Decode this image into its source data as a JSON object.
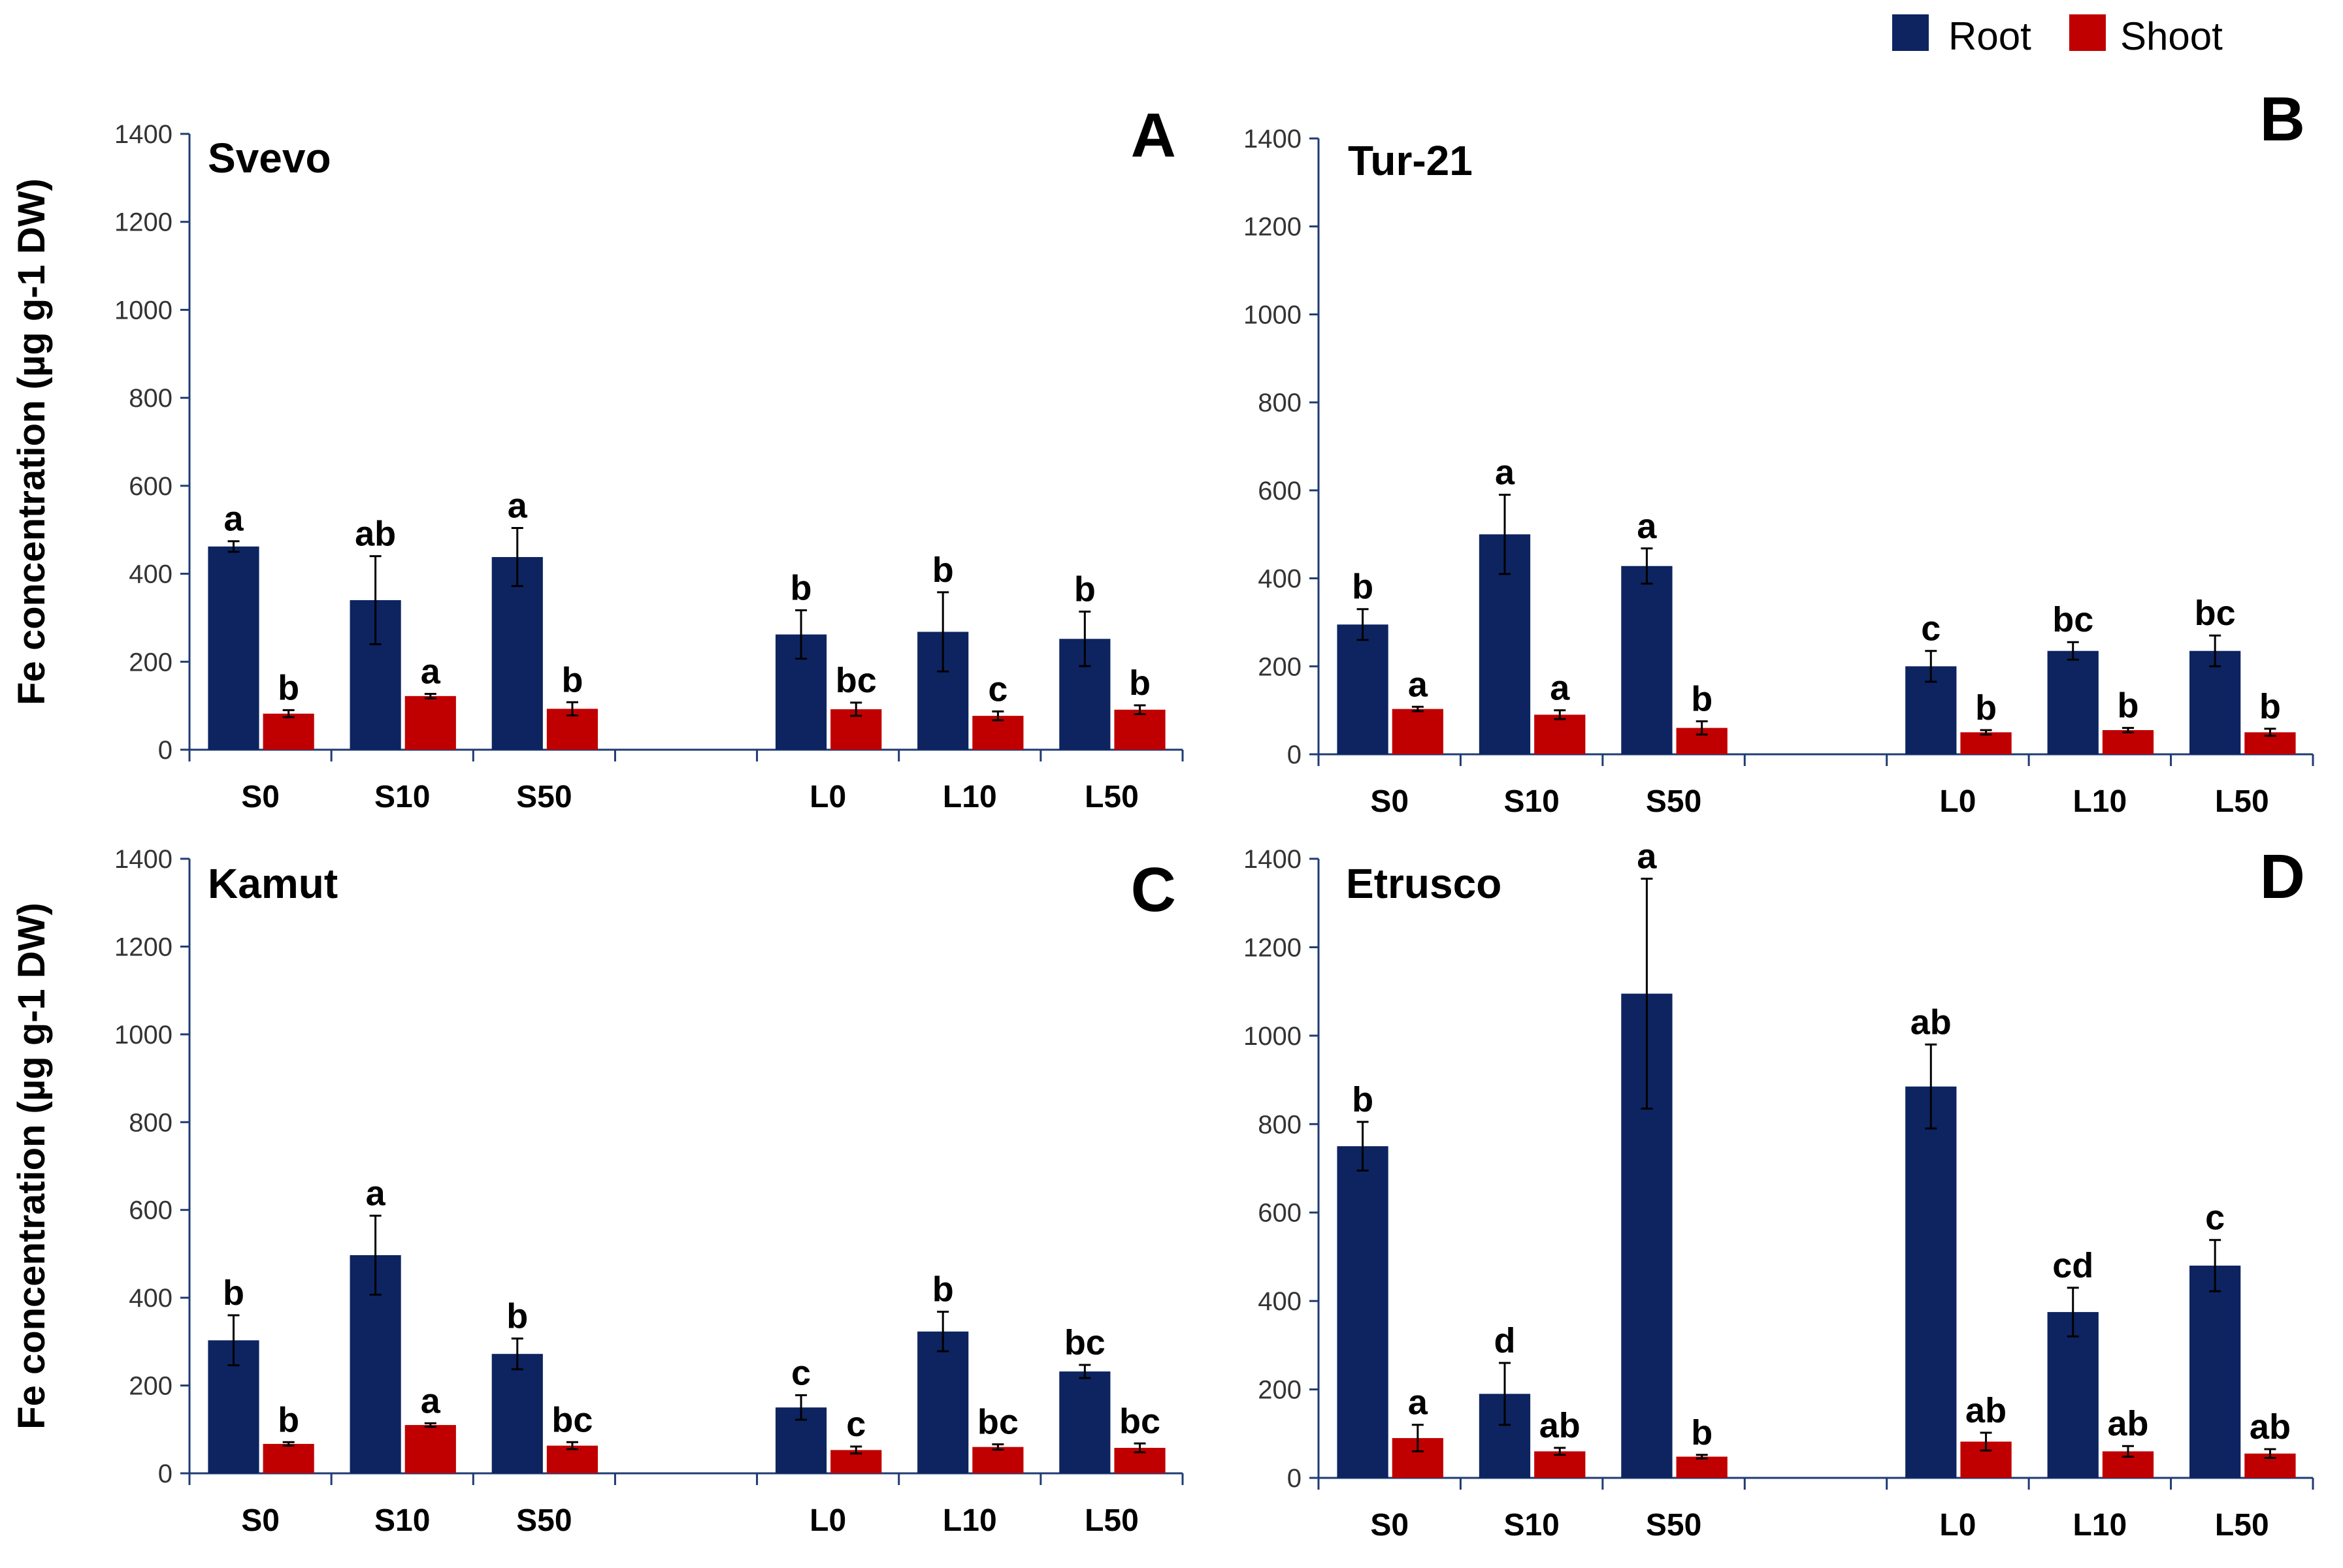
{
  "legend": {
    "entries": [
      {
        "name": "Root",
        "color": "#0d2460"
      },
      {
        "name": "Shoot",
        "color": "#c00000"
      }
    ]
  },
  "colors": {
    "root": "#0d2460",
    "shoot": "#c00000",
    "axis": "#1f3b73"
  },
  "chart_data": [
    {
      "type": "bar",
      "panel": "A",
      "title": "Svevo",
      "ylabel": "Fe concentration (µg g-1 DW)",
      "ylim": [
        0,
        1400
      ],
      "yticks": [
        0,
        200,
        400,
        600,
        800,
        1000,
        1200,
        1400
      ],
      "categories": [
        "S0",
        "S10",
        "S50",
        "L0",
        "L10",
        "L50"
      ],
      "series": [
        {
          "name": "Root",
          "values": [
            462,
            340,
            438,
            262,
            268,
            252
          ],
          "errors": [
            12,
            100,
            66,
            55,
            90,
            62
          ],
          "letters": [
            "a",
            "ab",
            "a",
            "b",
            "b",
            "b"
          ]
        },
        {
          "name": "Shoot",
          "values": [
            82,
            122,
            93,
            92,
            77,
            91
          ],
          "errors": [
            8,
            5,
            15,
            15,
            10,
            10
          ],
          "letters": [
            "b",
            "a",
            "b",
            "bc",
            "c",
            "b"
          ]
        }
      ]
    },
    {
      "type": "bar",
      "panel": "B",
      "title": "Tur-21",
      "ylabel": "",
      "ylim": [
        0,
        1400
      ],
      "yticks": [
        0,
        200,
        400,
        600,
        800,
        1000,
        1200,
        1400
      ],
      "categories": [
        "S0",
        "S10",
        "S50",
        "L0",
        "L10",
        "L50"
      ],
      "series": [
        {
          "name": "Root",
          "values": [
            295,
            500,
            428,
            200,
            235,
            235
          ],
          "errors": [
            35,
            90,
            40,
            35,
            20,
            35
          ],
          "letters": [
            "b",
            "a",
            "a",
            "c",
            "bc",
            "bc"
          ]
        },
        {
          "name": "Shoot",
          "values": [
            103,
            90,
            60,
            50,
            55,
            50
          ],
          "errors": [
            5,
            10,
            15,
            5,
            5,
            8
          ],
          "letters": [
            "a",
            "a",
            "b",
            "b",
            "b",
            "b"
          ]
        }
      ]
    },
    {
      "type": "bar",
      "panel": "C",
      "title": "Kamut",
      "ylabel": "Fe concentration (µg g-1 DW)",
      "ylim": [
        0,
        1400
      ],
      "yticks": [
        0,
        200,
        400,
        600,
        800,
        1000,
        1200,
        1400
      ],
      "categories": [
        "S0",
        "S10",
        "S50",
        "L0",
        "L10",
        "L50"
      ],
      "series": [
        {
          "name": "Root",
          "values": [
            303,
            497,
            272,
            150,
            323,
            232
          ],
          "errors": [
            57,
            90,
            35,
            28,
            45,
            15
          ],
          "letters": [
            "b",
            "a",
            "b",
            "c",
            "b",
            "bc"
          ]
        },
        {
          "name": "Shoot",
          "values": [
            67,
            110,
            63,
            53,
            60,
            58
          ],
          "errors": [
            4,
            4,
            8,
            8,
            6,
            10
          ],
          "letters": [
            "b",
            "a",
            "bc",
            "c",
            "bc",
            "bc"
          ]
        }
      ]
    },
    {
      "type": "bar",
      "panel": "D",
      "title": "Etrusco",
      "ylabel": "",
      "ylim": [
        0,
        1400
      ],
      "yticks": [
        0,
        200,
        400,
        600,
        800,
        1000,
        1200,
        1400
      ],
      "categories": [
        "S0",
        "S10",
        "S50",
        "L0",
        "L10",
        "L50"
      ],
      "series": [
        {
          "name": "Root",
          "values": [
            750,
            190,
            1095,
            885,
            375,
            480
          ],
          "errors": [
            55,
            70,
            260,
            95,
            55,
            58
          ],
          "letters": [
            "b",
            "d",
            "a",
            "ab",
            "cd",
            "c"
          ]
        },
        {
          "name": "Shoot",
          "values": [
            90,
            60,
            48,
            82,
            60,
            55
          ],
          "errors": [
            30,
            8,
            4,
            20,
            12,
            10
          ],
          "letters": [
            "a",
            "ab",
            "b",
            "ab",
            "ab",
            "ab"
          ]
        }
      ]
    }
  ]
}
